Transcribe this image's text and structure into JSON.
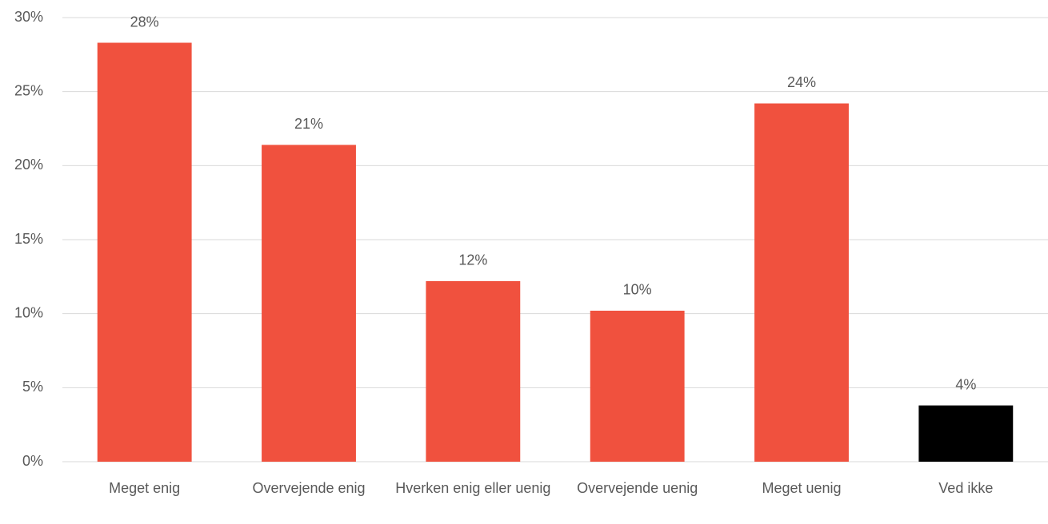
{
  "chart_data": {
    "type": "bar",
    "categories": [
      "Meget enig",
      "Overvejende enig",
      "Hverken enig eller uenig",
      "Overvejende uenig",
      "Meget uenig",
      "Ved ikke"
    ],
    "values": [
      28.3,
      21.4,
      12.2,
      10.2,
      24.2,
      3.8
    ],
    "value_labels": [
      "28%",
      "21%",
      "12%",
      "10%",
      "24%",
      "4%"
    ],
    "colors": [
      "#f0513e",
      "#f0513e",
      "#f0513e",
      "#f0513e",
      "#f0513e",
      "#000000"
    ],
    "ylim": [
      0,
      30
    ],
    "yticks": [
      {
        "value": 0,
        "label": "0%"
      },
      {
        "value": 5,
        "label": "5%"
      },
      {
        "value": 10,
        "label": "10%"
      },
      {
        "value": 15,
        "label": "15%"
      },
      {
        "value": 20,
        "label": "20%"
      },
      {
        "value": 25,
        "label": "25%"
      },
      {
        "value": 30,
        "label": "30%"
      }
    ],
    "grid": true
  }
}
